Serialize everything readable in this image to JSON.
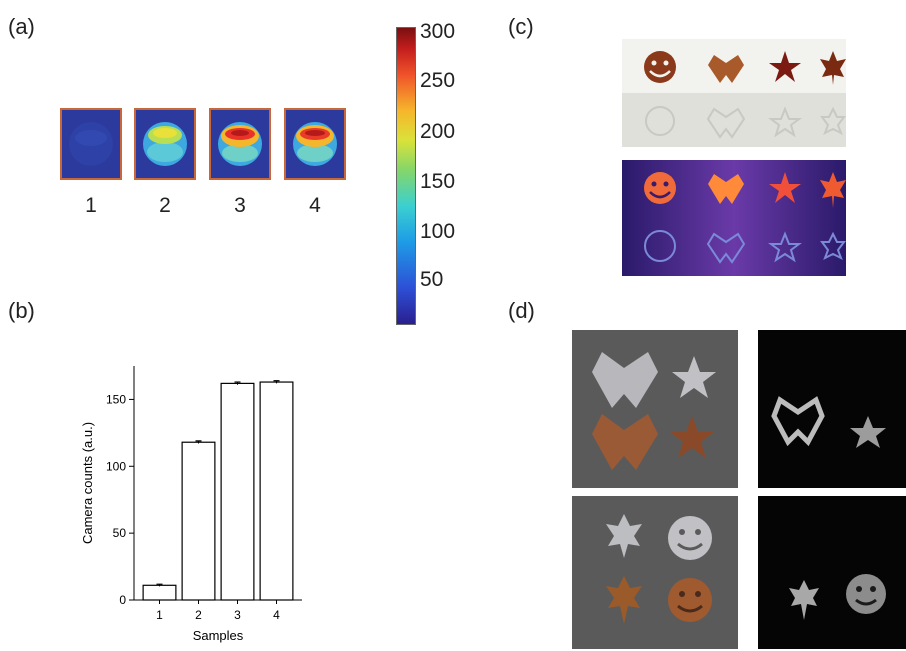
{
  "panels": {
    "a": "(a)",
    "b": "(b)",
    "c": "(c)",
    "d": "(d)"
  },
  "thermal_samples": [
    "1",
    "2",
    "3",
    "4"
  ],
  "colorbar": {
    "ticks": [
      "300",
      "250",
      "200",
      "150",
      "100",
      "50"
    ],
    "colors": [
      "#7a0f0f",
      "#c41d1d",
      "#f0542a",
      "#f6b62b",
      "#d9e23a",
      "#84d66a",
      "#3cd0d0",
      "#1e9de6",
      "#2d4fd6",
      "#2a1f8f"
    ]
  },
  "chart_data": {
    "type": "bar",
    "categories": [
      "1",
      "2",
      "3",
      "4"
    ],
    "values": [
      11,
      118,
      162,
      163
    ],
    "errors": [
      0.8,
      1.0,
      1.0,
      1.0
    ],
    "xlabel": "Samples",
    "ylabel": "Camera counts (a.u.)",
    "ylim": [
      0,
      175
    ],
    "yticks": [
      0,
      50,
      100,
      150
    ],
    "grid": false,
    "bar_fill": "#ffffff",
    "bar_stroke": "#000000"
  }
}
